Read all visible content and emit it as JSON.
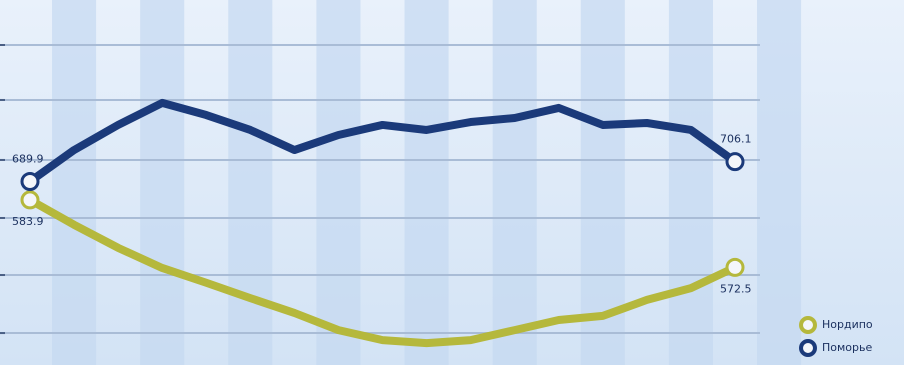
{
  "chart_data": {
    "type": "line",
    "categories": [
      null,
      null,
      null,
      null,
      null,
      null,
      null,
      null,
      null,
      null,
      null,
      null,
      null,
      null,
      null,
      null,
      null
    ],
    "series": [
      {
        "name": "Нордипо",
        "color": "#b5b83c",
        "axis": "y2",
        "values": [
          583.9,
          579.7,
          575.8,
          572.4,
          569.9,
          567.3,
          564.8,
          561.9,
          560.2,
          559.7,
          560.2,
          561.9,
          563.6,
          564.3,
          567.0,
          569.0,
          572.5
        ]
      },
      {
        "name": "Поморье",
        "color": "#1b3a7a",
        "values": [
          689.9,
          715.6,
          736.1,
          754.1,
          744.2,
          732.0,
          715.6,
          727.9,
          736.1,
          732.0,
          738.5,
          741.8,
          750.0,
          736.1,
          737.7,
          732.0,
          706.1
        ]
      }
    ],
    "ylim": [
      540,
      830
    ],
    "yticks": [
      566.1,
      613.5,
      660.1,
      707.5,
      756.5,
      801.4
    ],
    "y2lim": [
      556,
      616
    ],
    "grid": true
  }
}
